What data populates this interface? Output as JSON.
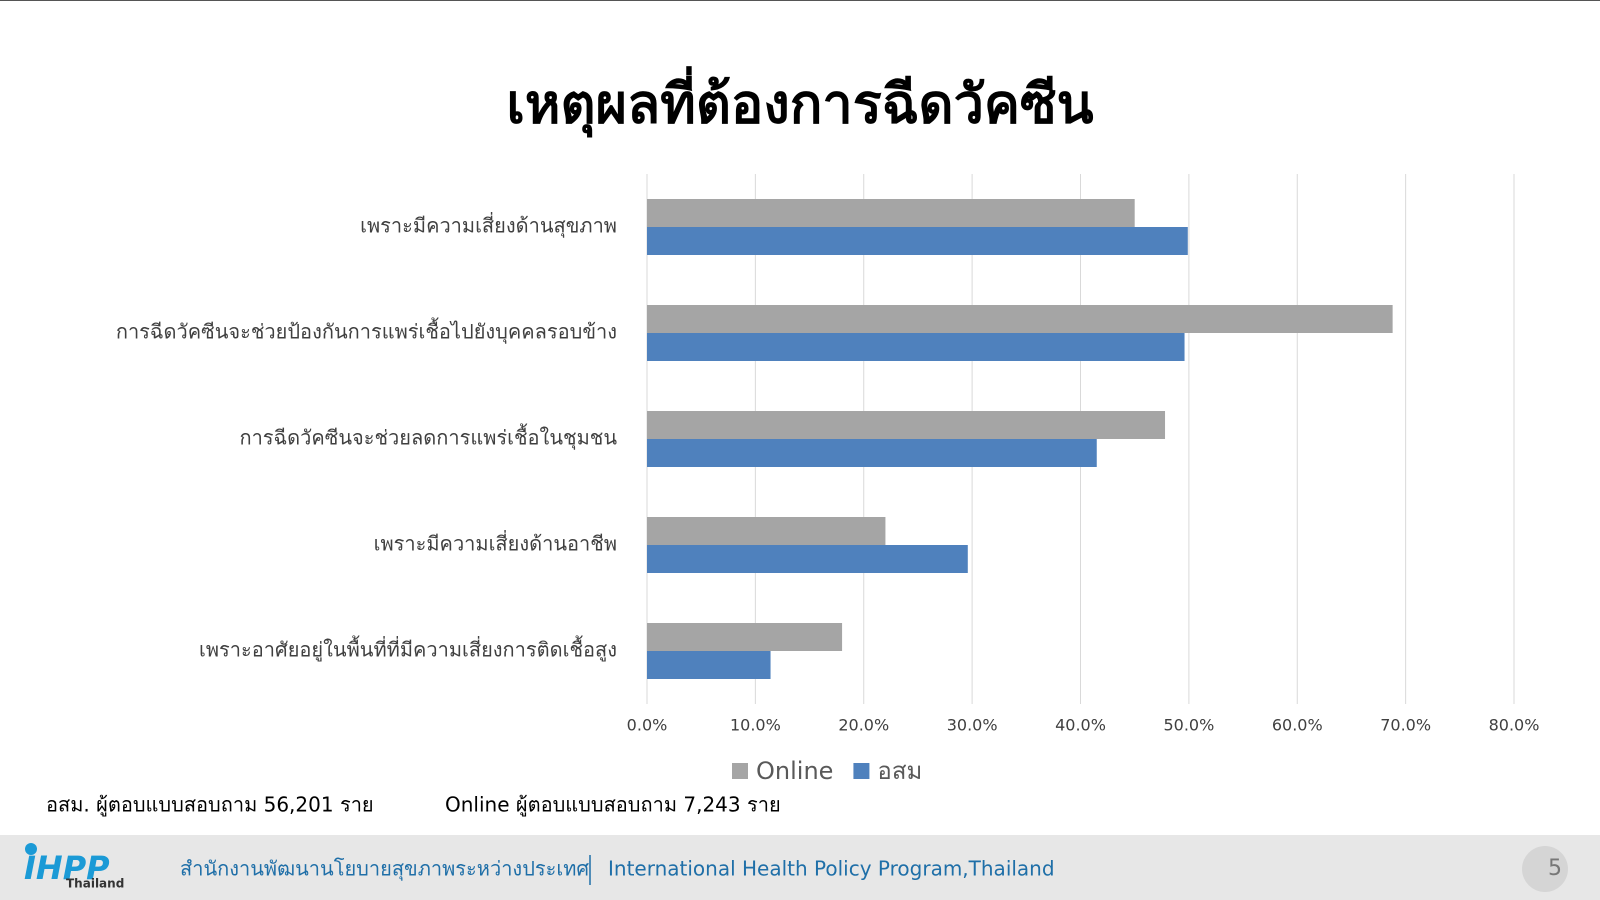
{
  "chart_data": {
    "type": "hbar",
    "title": "เหตุผลที่ต้องการฉีดวัคซีน",
    "categories": [
      "เพราะมีความเสี่ยงด้านสุขภาพ",
      "การฉีดวัคซีนจะช่วยป้องกันการแพร่เชื้อไปยังบุคคลรอบข้าง",
      "การฉีดวัคซีนจะช่วยลดการแพร่เชื้อในชุมชน",
      "เพราะมีความเสี่ยงด้านอาชีพ",
      "เพราะอาศัยอยู่ในพื้นที่ที่มีความเสี่ยงการติดเชื้อสูง"
    ],
    "series": [
      {
        "name": "Online",
        "color": "#a5a5a5",
        "values": [
          45.0,
          68.8,
          47.8,
          22.0,
          18.0
        ]
      },
      {
        "name": "อสม",
        "color": "#4f81bd",
        "values": [
          49.9,
          49.6,
          41.5,
          29.6,
          11.4
        ]
      }
    ],
    "xlim": [
      0,
      80
    ],
    "xticks": [
      {
        "value": 0,
        "label": "0.0%"
      },
      {
        "value": 10,
        "label": "10.0%"
      },
      {
        "value": 20,
        "label": "20.0%"
      },
      {
        "value": 30,
        "label": "30.0%"
      },
      {
        "value": 40,
        "label": "40.0%"
      },
      {
        "value": 50,
        "label": "50.0%"
      },
      {
        "value": 60,
        "label": "60.0%"
      },
      {
        "value": 70,
        "label": "70.0%"
      },
      {
        "value": 80,
        "label": "80.0%"
      }
    ],
    "grid": true,
    "legend": "bottom"
  },
  "notes": [
    "อสม. ผู้ตอบแบบสอบถาม 56,201 ราย",
    "Online ผู้ตอบแบบสอบถาม 7,243 ราย"
  ],
  "footer": {
    "logo": "IHPP",
    "logo_sub": "Thailand",
    "org_th": "สำนักงานพัฒนานโยบายสุขภาพระหว่างประเทศ",
    "org_en": "International Health Policy Program,Thailand",
    "page": "5"
  }
}
